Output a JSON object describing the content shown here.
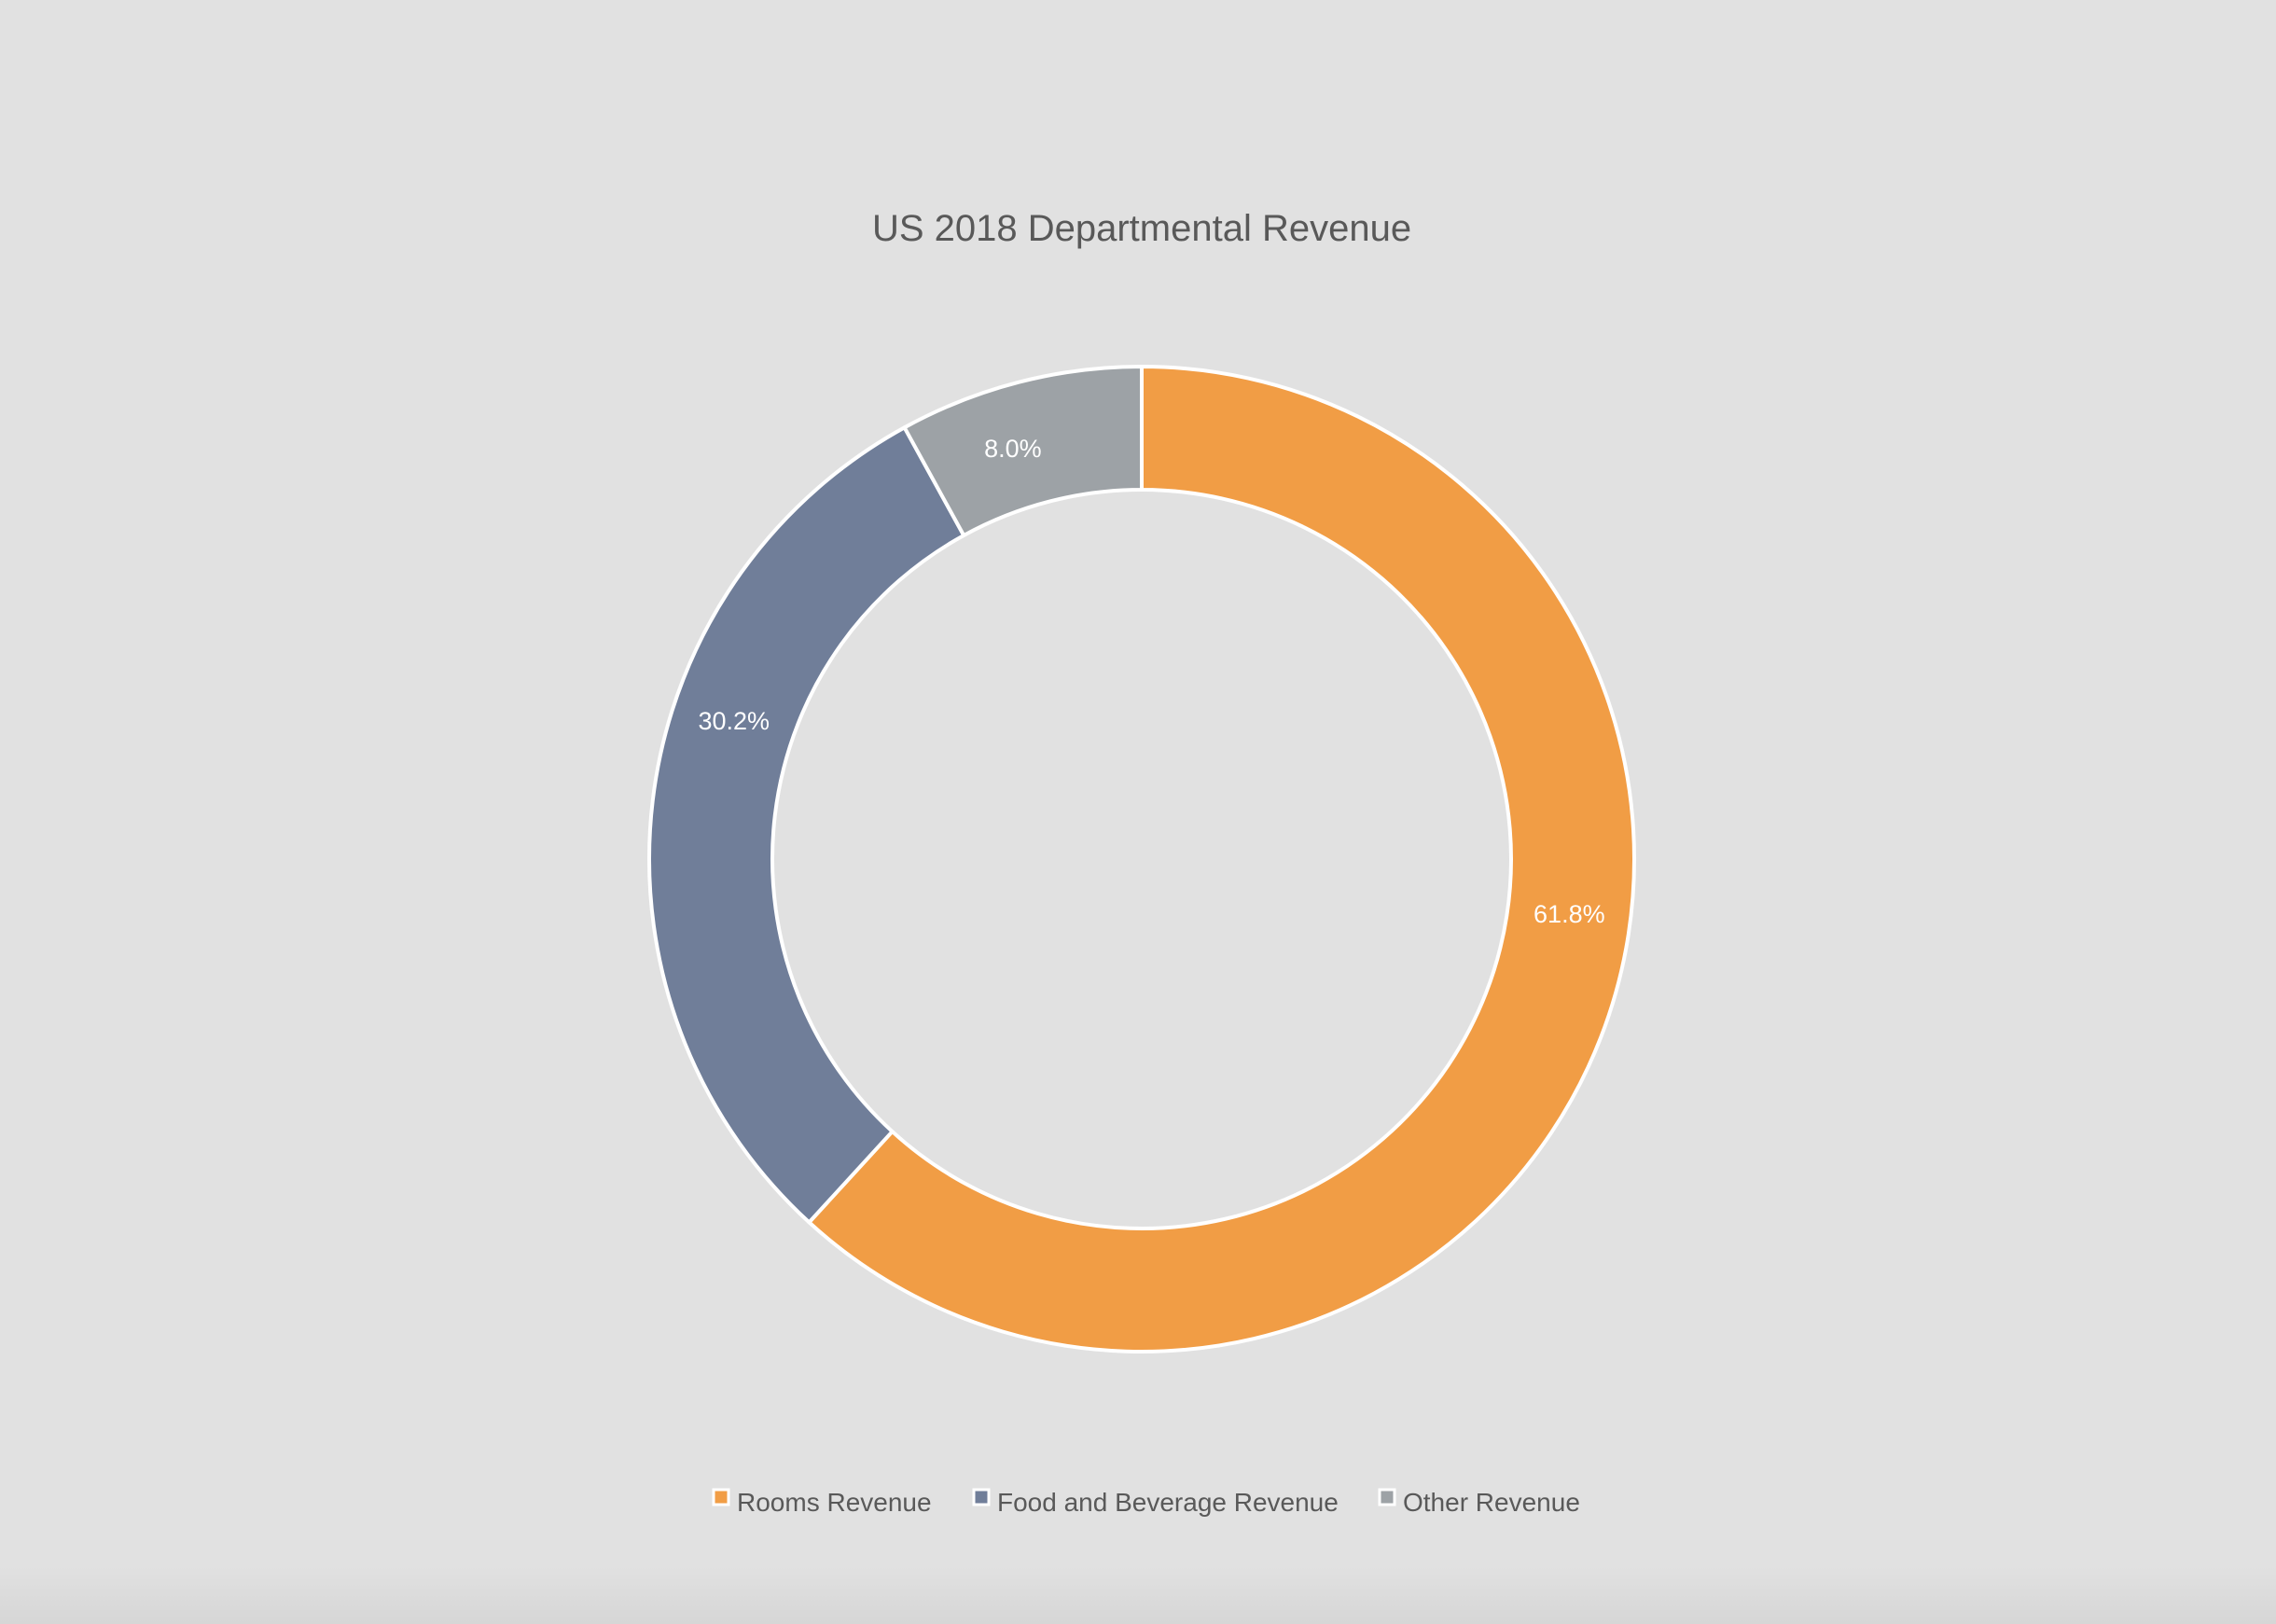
{
  "chart_data": {
    "type": "pie",
    "variant": "doughnut",
    "title": "US 2018 Departmental Revenue",
    "categories": [
      "Rooms Revenue",
      "Food and Beverage Revenue",
      "Other Revenue"
    ],
    "values": [
      61.8,
      30.2,
      8.0
    ],
    "value_labels": [
      "61.8%",
      "30.2%",
      "8.0%"
    ],
    "colors": [
      "#f19d45",
      "#707e99",
      "#9da2a6"
    ],
    "legend_position": "bottom",
    "start_angle_deg": 0,
    "direction": "clockwise"
  }
}
